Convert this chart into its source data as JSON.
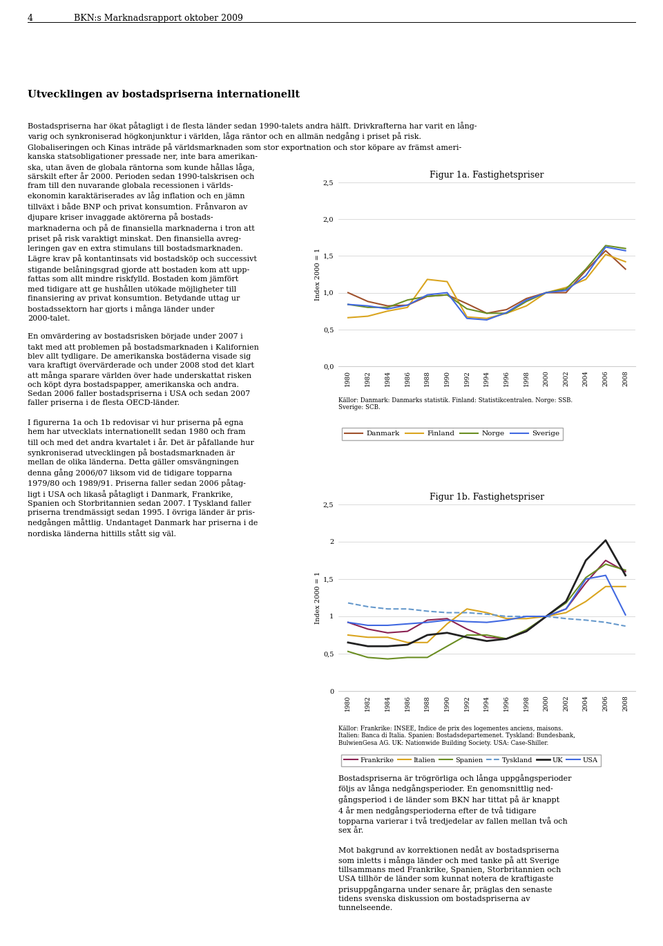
{
  "page_num": "4",
  "page_header": "BKN:s Marknadsrapport oktober 2009",
  "fig1a_title": "Figur 1a. Fastighetspriser",
  "fig1a_ylabel": "Index 2000 = 1",
  "fig1a_ylim": [
    0.0,
    2.5
  ],
  "fig1a_yticks": [
    0.0,
    0.5,
    1.0,
    1.5,
    2.0,
    2.5
  ],
  "fig1a_ytick_labels": [
    "0,0",
    "0,5",
    "1,0",
    "1,5",
    "2,0",
    "2,5"
  ],
  "fig1a_years": [
    1980,
    1982,
    1984,
    1986,
    1988,
    1990,
    1992,
    1994,
    1996,
    1998,
    2000,
    2002,
    2004,
    2006,
    2008
  ],
  "fig1a_danmark": [
    1.0,
    0.88,
    0.82,
    0.83,
    0.95,
    0.97,
    0.85,
    0.72,
    0.77,
    0.92,
    1.0,
    1.0,
    1.3,
    1.57,
    1.32
  ],
  "fig1a_finland": [
    0.66,
    0.68,
    0.75,
    0.8,
    1.18,
    1.15,
    0.67,
    0.65,
    0.72,
    0.82,
    1.0,
    1.07,
    1.18,
    1.52,
    1.42
  ],
  "fig1a_norge": [
    0.84,
    0.8,
    0.8,
    0.9,
    0.95,
    0.97,
    0.78,
    0.72,
    0.72,
    0.88,
    1.0,
    1.05,
    1.32,
    1.64,
    1.6
  ],
  "fig1a_sverige": [
    0.84,
    0.82,
    0.78,
    0.83,
    0.97,
    1.0,
    0.65,
    0.63,
    0.73,
    0.9,
    1.0,
    1.03,
    1.23,
    1.62,
    1.57
  ],
  "fig1a_colors": {
    "Danmark": "#A0522D",
    "Finland": "#DAA520",
    "Norge": "#6B8E23",
    "Sverige": "#4169E1"
  },
  "fig1a_source": "Källor: Danmark: Danmarks statistik. Finland: Statistikcentralen. Norge: SSB.\nSverige: SCB.",
  "fig1b_title": "Figur 1b. Fastighetspriser",
  "fig1b_ylabel": "Index 2000 = 1",
  "fig1b_ylim": [
    0.0,
    2.5
  ],
  "fig1b_yticks": [
    0.0,
    0.5,
    1.0,
    1.5,
    2.0,
    2.5
  ],
  "fig1b_ytick_labels": [
    "0",
    "0,5",
    "1",
    "1,5",
    "2",
    "2,5"
  ],
  "fig1b_years": [
    1980,
    1982,
    1984,
    1986,
    1988,
    1990,
    1992,
    1994,
    1996,
    1998,
    2000,
    2002,
    2004,
    2006,
    2008
  ],
  "fig1b_frankrike": [
    0.92,
    0.83,
    0.78,
    0.8,
    0.95,
    0.97,
    0.83,
    0.72,
    0.7,
    0.8,
    1.0,
    1.1,
    1.45,
    1.75,
    1.6
  ],
  "fig1b_italien": [
    0.75,
    0.72,
    0.72,
    0.65,
    0.65,
    0.9,
    1.1,
    1.05,
    0.97,
    0.97,
    1.0,
    1.05,
    1.2,
    1.4,
    1.4
  ],
  "fig1b_spanien": [
    0.53,
    0.45,
    0.43,
    0.45,
    0.45,
    0.6,
    0.75,
    0.75,
    0.7,
    0.82,
    1.0,
    1.18,
    1.52,
    1.7,
    1.62
  ],
  "fig1b_tyskland": [
    1.18,
    1.13,
    1.1,
    1.1,
    1.07,
    1.05,
    1.05,
    1.03,
    1.0,
    1.0,
    1.0,
    0.97,
    0.95,
    0.92,
    0.87
  ],
  "fig1b_uk": [
    0.65,
    0.6,
    0.6,
    0.62,
    0.75,
    0.78,
    0.72,
    0.67,
    0.7,
    0.8,
    1.0,
    1.2,
    1.75,
    2.02,
    1.55
  ],
  "fig1b_usa": [
    0.92,
    0.88,
    0.88,
    0.9,
    0.92,
    0.95,
    0.93,
    0.92,
    0.95,
    1.0,
    1.0,
    1.1,
    1.5,
    1.55,
    1.02
  ],
  "fig1b_colors": {
    "Frankrike": "#8B2252",
    "Italien": "#DAA520",
    "Spanien": "#6B8E23",
    "Tyskland": "#6699CC",
    "UK": "#222222",
    "USA": "#4169E1"
  },
  "fig1b_source": "Källor: Frankrike: INSEE, Indice de prix des logementes anciens, maisons.\nItalien: Banca di Italia. Spanien: Bostadsdepartemenet. Tyskland: Bundesbank,\nBulwienGesa AG. UK: Nationwide Building Society. USA: Case-Shiller.",
  "left_col_title": "Utvecklingen av bostadspriserna internationellt",
  "left_col_body": "Bostadspriserna har ökat påtagligt i de flesta länder sedan 1990-talets andra hälft. Drivkrafterna har varit en lång-\nvarig och synkroniserad högkonjunktur i världen, låga räntor och en allmän nedgång i priset på risk.\nGlobaliseringen och Kinas inträde på världsmarknaden som stor exportnation och stor köpare av främst ameri-\nkanska statsobligationer pressade ner, inte bara amerikan-\nska, utan även de globala räntorna som kunde hållas låga,\nsärskilt efter år 2000. Perioden sedan 1990-talskrisen och\nfram till den nuvarande globala recessionen i världs-\nekonomin karaktäriserades av låg inflation och en jämn\ntillväxt i både BNP och privat konsumtion. Frånvaron av\ndjupare kriser invaggade aktörerna på bostads-\nmarknaderna och på de finansiella marknaderna i tron att\npriset på risk varaktigt minskat. Den finansiella avreg-\nleringen gav en extra stimulans till bostadsmarknaden.\nLägre krav på kontantinsats vid bostadsköp och successivt\nstigande belåningsgrad gjorde att bostaden kom att upp-\nfattas som allt mindre riskfylld. Bostaden kom jämfört\nmed tidigare att ge hushållen utökade möjligheter till\nfinansiering av privat konsumtion. Betydande uttag ur\nbostadssektorn har gjorts i många länder under\n2000-talet.\n\nEn omvärdering av bostadsrisken började under 2007 i\ntakt med att problemen på bostadsmarknaden i Kalifornien\nblev allt tydligare. De amerikanska bostäderna visade sig\nvara kraftigt övervärderade och under 2008 stod det klart\natt många sparare världen över hade underskattat risken\noch köpt dyra bostadspapper, amerikanska och andra.\nSedan 2006 faller bostadspriserna i USA och sedan 2007\nfaller priserna i de flesta OECD-länder.\n\nI figurerna 1a och 1b redovisar vi hur priserna på egna\nhem har utvecklats internationellt sedan 1980 och fram\ntill och med det andra kvartalet i år. Det är påfallande hur\nsynkroniserad utvecklingen på bostadsmarknaden är\nmellan de olika länderna. Detta gäller omsvängningen\ndenna gång 2006/07 liksom vid de tidigare topparna\n1979/80 och 1989/91. Priserna faller sedan 2006 påtag-\nligt i USA och likaså påtagligt i Danmark, Frankrike,\nSpanien och Storbritannien sedan 2007. I Tyskland faller\npriserna trendmässigt sedan 1995. I övriga länder är pris-\nnedgången måttlig. Undantaget Danmark har priserna i de\nnordiska länderna hittills stått sig väl.",
  "right_col_text": "Bostadspriserna är trögrörliga och långa uppgångsperioder\nföljs av långa nedgångsperioder. En genomsnittlig ned-\ngångsperiod i de länder som BKN har tittat på är knappt\n4 år men nedgångsperioderna efter de två tidigare\ntopparna varierar i två tredjedelar av fallen mellan två och\nsex år.\n\nMot bakgrund av korrektionen nedåt av bostadspriserna\nsom inletts i många länder och med tanke på att Sverige\ntillsammans med Frankrike, Spanien, Storbritannien och\nUSA tillhör de länder som kunnat notera de kraftigaste\nprisuppgångarna under senare år, präglas den senaste\ntidens svenska diskussion om bostadspriserna av\ntunnelseende."
}
